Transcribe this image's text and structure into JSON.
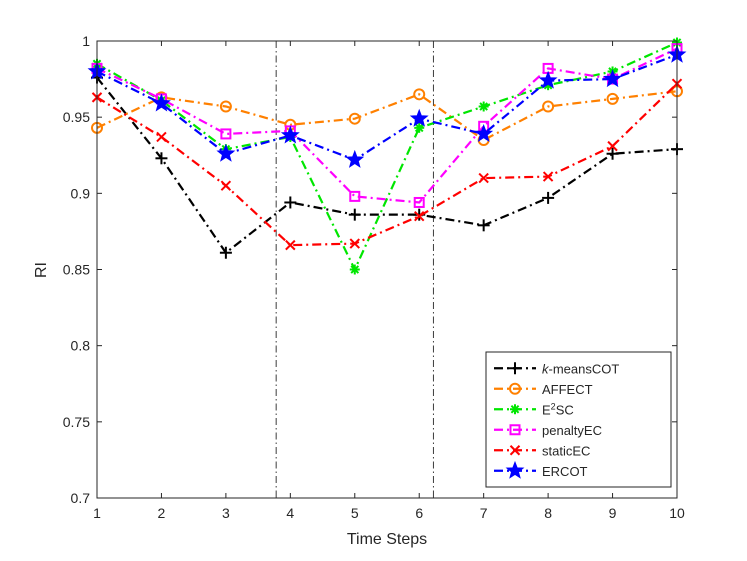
{
  "chart_data": {
    "type": "line",
    "title": "",
    "xlabel": "Time Steps",
    "ylabel": "RI",
    "xlim": [
      1,
      10
    ],
    "ylim": [
      0.7,
      1.0
    ],
    "x": [
      1,
      2,
      3,
      4,
      5,
      6,
      7,
      8,
      9,
      10
    ],
    "xticks": [
      "1",
      "2",
      "3",
      "4",
      "5",
      "6",
      "7",
      "8",
      "9",
      "10"
    ],
    "yticks": [
      "0.7",
      "0.75",
      "0.8",
      "0.85",
      "0.9",
      "0.95",
      "1"
    ],
    "vlines": [
      3.78,
      6.22
    ],
    "grid": false,
    "legend_position": "bottom-right",
    "series": [
      {
        "key": "kmeanscot",
        "name_prefix": "k",
        "name": "-meansCOT",
        "color": "#000000",
        "marker": "plus",
        "values": [
          0.976,
          0.923,
          0.861,
          0.894,
          0.886,
          0.886,
          0.879,
          0.897,
          0.926,
          0.929
        ]
      },
      {
        "key": "affect",
        "name": "AFFECT",
        "color": "#FF8000",
        "marker": "circle",
        "values": [
          0.943,
          0.963,
          0.957,
          0.945,
          0.949,
          0.965,
          0.935,
          0.957,
          0.962,
          0.967
        ]
      },
      {
        "key": "e2sc",
        "name": "E",
        "name_sup": "2",
        "name_rest": "SC",
        "color": "#00E600",
        "marker": "asterisk",
        "values": [
          0.985,
          0.961,
          0.929,
          0.937,
          0.85,
          0.943,
          0.957,
          0.971,
          0.98,
          0.999
        ]
      },
      {
        "key": "penaltyec",
        "name": "penaltyEC",
        "color": "#FF00FF",
        "marker": "square",
        "values": [
          0.982,
          0.962,
          0.939,
          0.941,
          0.898,
          0.894,
          0.944,
          0.982,
          0.975,
          0.995
        ]
      },
      {
        "key": "staticec",
        "name": "staticEC",
        "color": "#FF0000",
        "marker": "x",
        "values": [
          0.963,
          0.937,
          0.905,
          0.866,
          0.867,
          0.885,
          0.91,
          0.911,
          0.931,
          0.972
        ]
      },
      {
        "key": "ercot",
        "name": "ERCOT",
        "color": "#0000FF",
        "marker": "star",
        "values": [
          0.98,
          0.959,
          0.926,
          0.938,
          0.922,
          0.949,
          0.939,
          0.974,
          0.975,
          0.991
        ]
      }
    ]
  }
}
